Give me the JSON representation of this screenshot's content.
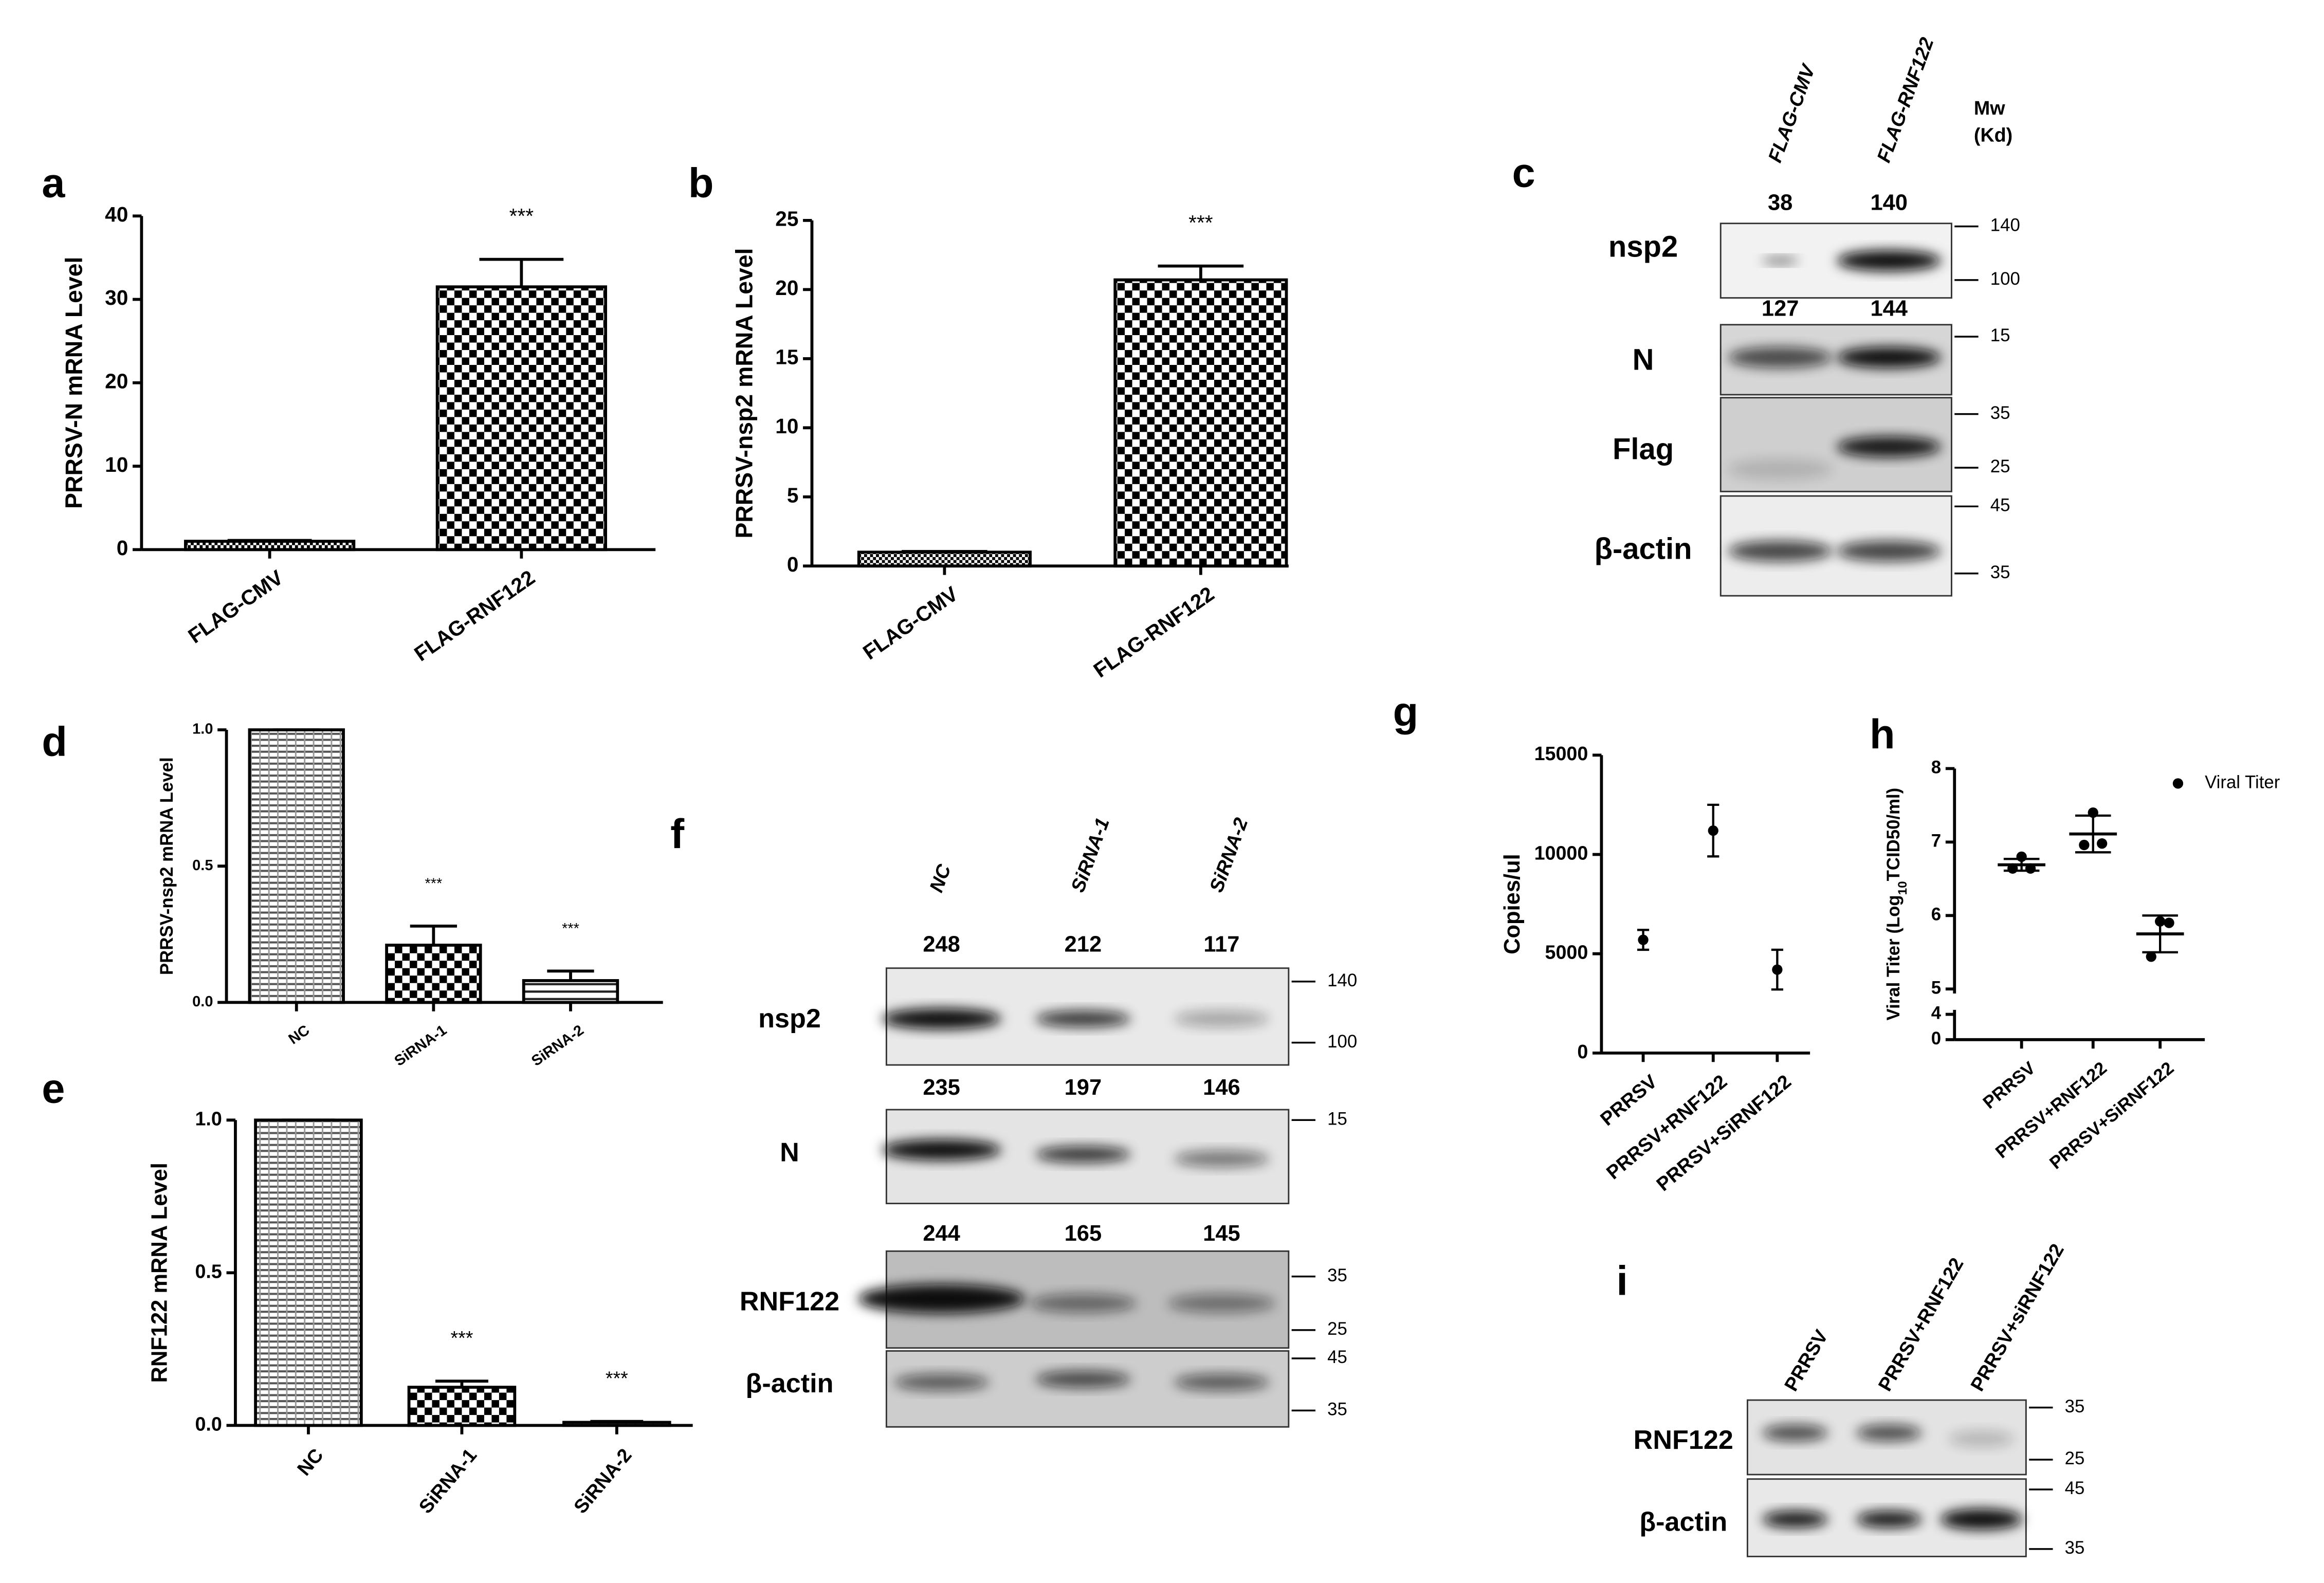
{
  "chart_data": [
    {
      "panel": "a",
      "type": "bar",
      "ylabel": "PRRSV-N mRNA Level",
      "categories": [
        "FLAG-CMV",
        "FLAG-RNF122"
      ],
      "values": [
        1,
        31.5
      ],
      "errors": [
        0.1,
        3.3
      ],
      "significance": [
        null,
        "***"
      ],
      "ylim": [
        0,
        40
      ],
      "yticks": [
        0,
        10,
        20,
        30,
        40
      ],
      "color": "#000000"
    },
    {
      "panel": "b",
      "type": "bar",
      "ylabel": "PRRSV-nsp2 mRNA Level",
      "categories": [
        "FLAG-CMV",
        "FLAG-RNF122"
      ],
      "values": [
        1,
        20.7
      ],
      "errors": [
        0.05,
        1.0
      ],
      "significance": [
        null,
        "***"
      ],
      "ylim": [
        0,
        25
      ],
      "yticks": [
        0,
        5,
        10,
        15,
        20,
        25
      ],
      "color": "#000000"
    },
    {
      "panel": "d",
      "type": "bar",
      "ylabel": "PRRSV-nsp2 mRNA Level",
      "categories": [
        "NC",
        "SiRNA-1",
        "SiRNA-2"
      ],
      "values": [
        1.0,
        0.21,
        0.08
      ],
      "errors": [
        0,
        0.07,
        0.035
      ],
      "significance": [
        null,
        "***",
        "***"
      ],
      "ylim": [
        0,
        1
      ],
      "yticks": [
        {
          "value": 0,
          "label": "0.0"
        },
        {
          "value": 0.5,
          "label": "0.5"
        },
        {
          "value": 1,
          "label": "1.0"
        }
      ],
      "color": "#000000"
    },
    {
      "panel": "e",
      "type": "bar",
      "ylabel": "RNF122 mRNA Level",
      "categories": [
        "NC",
        "SiRNA-1",
        "SiRNA-2"
      ],
      "values": [
        1.0,
        0.125,
        0.01
      ],
      "errors": [
        0,
        0.02,
        0.003
      ],
      "significance": [
        null,
        "***",
        "***"
      ],
      "ylim": [
        0,
        1
      ],
      "yticks": [
        {
          "value": 0,
          "label": "0.0"
        },
        {
          "value": 0.5,
          "label": "0.5"
        },
        {
          "value": 1,
          "label": "1.0"
        }
      ],
      "color": "#000000"
    },
    {
      "panel": "g",
      "type": "dot",
      "ylabel": "Copies/ul",
      "categories": [
        "PRRSV",
        "PRRSV+RNF122",
        "PRRSV+SiRNF122"
      ],
      "values": [
        5700,
        11200,
        4200
      ],
      "errors": [
        500,
        1300,
        1000
      ],
      "ylim": [
        0,
        15000
      ],
      "yticks": [
        0,
        5000,
        10000,
        15000
      ],
      "color": "#000000"
    },
    {
      "panel": "h",
      "type": "dot",
      "ylabel": [
        "Viral Titer (Log",
        "10",
        "TCID50/ml)"
      ],
      "categories": [
        "PRRSV",
        "PRRSV+RNF122",
        "PRRSV+SiRNF122"
      ],
      "values": [
        6.69,
        7.11,
        5.75
      ],
      "errors": [
        0.08,
        0.25,
        0.25
      ],
      "replicates": [
        [
          6.64,
          6.64,
          6.8
        ],
        [
          6.96,
          6.98,
          7.4
        ],
        [
          5.44,
          5.9,
          5.92
        ]
      ],
      "ylim": [
        0,
        8
      ],
      "ybreak": [
        4,
        5
      ],
      "yticks": [
        0,
        4,
        5,
        6,
        7,
        8
      ],
      "legend": {
        "label": "Viral Titer",
        "position": "top-right"
      },
      "color": "#000000"
    }
  ],
  "blots": [
    {
      "panel": "c",
      "lanes": [
        "FLAG-CMV",
        "FLAG-RNF122"
      ],
      "mw": [
        "Mw",
        "(Kd)"
      ],
      "rows": [
        {
          "label": "nsp2",
          "quant": [
            38,
            140
          ],
          "markers": [
            140,
            100
          ]
        },
        {
          "label": "N",
          "quant": [
            127,
            144
          ],
          "markers": [
            15
          ]
        },
        {
          "label": "Flag",
          "markers": [
            35,
            25
          ]
        },
        {
          "label": "β-actin",
          "markers": [
            45,
            35
          ]
        }
      ]
    },
    {
      "panel": "f",
      "lanes": [
        "NC",
        "SiRNA-1",
        "SiRNA-2"
      ],
      "rows": [
        {
          "label": "nsp2",
          "quant": [
            248,
            212,
            117
          ],
          "markers": [
            140,
            100
          ]
        },
        {
          "label": "N",
          "quant": [
            235,
            197,
            146
          ],
          "markers": [
            15
          ]
        },
        {
          "label": "RNF122",
          "quant": [
            244,
            165,
            145
          ],
          "markers": [
            35,
            25
          ]
        },
        {
          "label": "β-actin",
          "markers": [
            45,
            35
          ]
        }
      ]
    },
    {
      "panel": "i",
      "lanes": [
        "PRRSV",
        "PRRSV+RNF122",
        "PRRSV+siRNF122"
      ],
      "rows": [
        {
          "label": "RNF122",
          "markers": [
            35,
            25
          ]
        },
        {
          "label": "β-actin",
          "markers": [
            45,
            35
          ]
        }
      ]
    }
  ]
}
